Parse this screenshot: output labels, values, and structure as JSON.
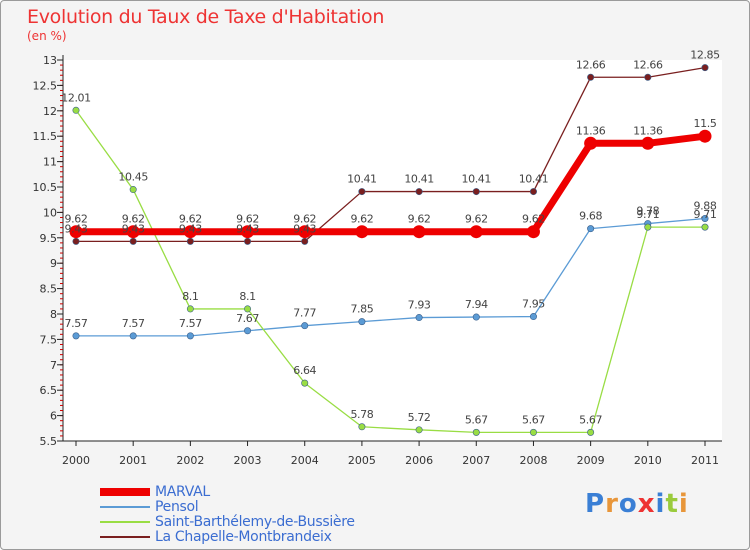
{
  "header": {
    "title": "Evolution du Taux de Taxe d'Habitation",
    "unit": "(en %)"
  },
  "chart_data": {
    "type": "line",
    "title": "Evolution du Taux de Taxe d'Habitation",
    "ylabel": "(en %)",
    "xlabel": "",
    "categories": [
      "2000",
      "2001",
      "2002",
      "2003",
      "2004",
      "2005",
      "2006",
      "2007",
      "2008",
      "2009",
      "2010",
      "2011"
    ],
    "ylim": [
      5.5,
      13
    ],
    "yticks": [
      "5.5",
      "6",
      "6.5",
      "7",
      "7.5",
      "8",
      "8.5",
      "9",
      "9.5",
      "10",
      "10.5",
      "11",
      "11.5",
      "12",
      "12.5",
      "13"
    ],
    "grid": false,
    "legend_position": "bottom",
    "series": [
      {
        "name": "MARVAL",
        "color": "#ee0000",
        "values": [
          9.62,
          9.62,
          9.62,
          9.62,
          9.62,
          9.62,
          9.62,
          9.62,
          9.62,
          11.36,
          11.36,
          11.5
        ],
        "labels": [
          "9.62",
          "9.62",
          "9.62",
          "9.62",
          "9.62",
          "9.62",
          "9.62",
          "9.62",
          "9.62",
          "11.36",
          "11.36",
          "11.5"
        ]
      },
      {
        "name": "Pensol",
        "color": "#5b9bd5",
        "values": [
          7.57,
          7.57,
          7.57,
          7.67,
          7.77,
          7.85,
          7.93,
          7.94,
          7.95,
          9.68,
          9.78,
          9.88
        ],
        "labels": [
          "7.57",
          "7.57",
          "7.57",
          "7.67",
          "7.77",
          "7.85",
          "7.93",
          "7.94",
          "7.95",
          "9.68",
          "9.78",
          "9.88"
        ]
      },
      {
        "name": "Saint-Barthélemy-de-Bussière",
        "color": "#99dd44",
        "values": [
          12.01,
          10.45,
          8.1,
          8.1,
          6.64,
          5.78,
          5.72,
          5.67,
          5.67,
          5.67,
          9.71,
          9.71
        ],
        "labels": [
          "12.01",
          "10.45",
          "8.1",
          "8.1",
          "6.64",
          "5.78",
          "5.72",
          "5.67",
          "5.67",
          "5.67",
          "9.71",
          "9.71"
        ]
      },
      {
        "name": "La Chapelle-Montbrandeix",
        "color": "#7a1f1f",
        "values": [
          9.43,
          9.43,
          9.43,
          9.43,
          9.43,
          10.41,
          10.41,
          10.41,
          10.41,
          12.66,
          12.66,
          12.85
        ],
        "labels": [
          "9.43",
          "9.43",
          "9.43",
          "9.43",
          "9.43",
          "10.41",
          "10.41",
          "10.41",
          "10.41",
          "12.66",
          "12.66",
          "12.85"
        ]
      }
    ]
  },
  "legend": {
    "items": [
      {
        "label": "MARVAL",
        "color": "#ee0000"
      },
      {
        "label": "Pensol",
        "color": "#5b9bd5"
      },
      {
        "label": "Saint-Barthélemy-de-Bussière",
        "color": "#99dd44"
      },
      {
        "label": "La Chapelle-Montbrandeix",
        "color": "#7a1f1f"
      }
    ]
  },
  "logo": {
    "text": "Proxiti",
    "colors": [
      "#3a7fd5",
      "#e8963a",
      "#3a7fd5",
      "#ee3333",
      "#3a7fd5",
      "#9acb3c",
      "#e8963a"
    ]
  }
}
